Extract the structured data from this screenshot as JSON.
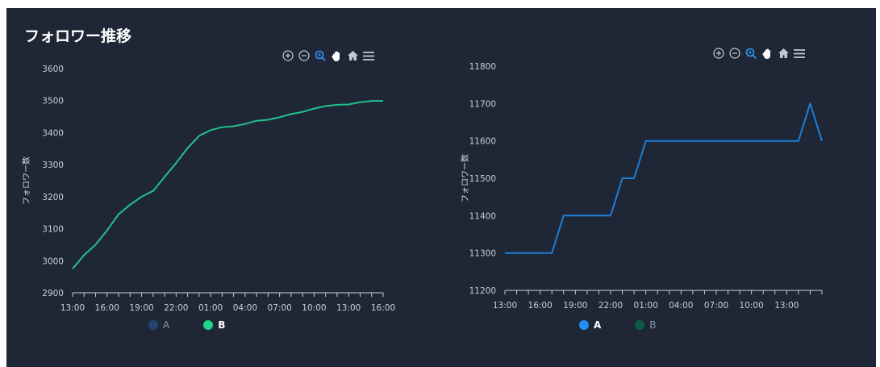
{
  "title": "フォロワー推移",
  "colors": {
    "background": "#1f2736",
    "axis": "#c9ced6",
    "icon": "#c3c9d2",
    "icon_active": "#2f8be6"
  },
  "toolbar": [
    "zoom-in",
    "zoom-out",
    "selection-zoom",
    "pan",
    "reset",
    "menu"
  ],
  "chart_data": [
    {
      "type": "line",
      "ylabel": "フォロワー数",
      "ylim": [
        2900,
        3600
      ],
      "yticks": [
        "2900",
        "3000",
        "3100",
        "3200",
        "3300",
        "3400",
        "3500",
        "3600"
      ],
      "xlim": [
        0,
        27
      ],
      "xticks": [
        {
          "x": 0,
          "label": "13:00"
        },
        {
          "x": 3,
          "label": "16:00"
        },
        {
          "x": 6,
          "label": "19:00"
        },
        {
          "x": 9,
          "label": "22:00"
        },
        {
          "x": 12,
          "label": "01:00"
        },
        {
          "x": 15,
          "label": "04:00"
        },
        {
          "x": 18,
          "label": "07:00"
        },
        {
          "x": 21,
          "label": "10:00"
        },
        {
          "x": 24,
          "label": "13:00"
        },
        {
          "x": 27,
          "label": "16:00"
        }
      ],
      "series": [
        {
          "name": "A",
          "color": "#24446f",
          "visible": false,
          "x": [],
          "values": []
        },
        {
          "name": "B",
          "color": "#22c08a",
          "visible": true,
          "x": [
            0,
            1,
            2,
            3,
            4,
            5,
            6,
            7,
            8,
            9,
            10,
            11,
            12,
            13,
            14,
            15,
            16,
            17,
            18,
            19,
            20,
            21,
            22,
            23,
            24,
            25,
            26,
            27
          ],
          "values": [
            2975,
            3018,
            3050,
            3095,
            3145,
            3175,
            3200,
            3218,
            3262,
            3305,
            3352,
            3390,
            3408,
            3417,
            3420,
            3427,
            3437,
            3440,
            3448,
            3458,
            3465,
            3475,
            3483,
            3487,
            3488,
            3495,
            3499,
            3499
          ]
        }
      ],
      "legend": [
        {
          "name": "A",
          "color": "#24446f",
          "active": false
        },
        {
          "name": "B",
          "color": "#1fd48d",
          "active": true
        }
      ]
    },
    {
      "type": "line",
      "ylabel": "フォロワー数",
      "ylim": [
        11200,
        11800
      ],
      "yticks": [
        "11200",
        "11300",
        "11400",
        "11500",
        "11600",
        "11700",
        "11800"
      ],
      "xlim": [
        0,
        27
      ],
      "xticks": [
        {
          "x": 0,
          "label": "13:00"
        },
        {
          "x": 3,
          "label": "16:00"
        },
        {
          "x": 6,
          "label": "19:00"
        },
        {
          "x": 9,
          "label": "22:00"
        },
        {
          "x": 12,
          "label": "01:00"
        },
        {
          "x": 15,
          "label": "04:00"
        },
        {
          "x": 18,
          "label": "07:00"
        },
        {
          "x": 21,
          "label": "10:00"
        },
        {
          "x": 24,
          "label": "13:00"
        }
      ],
      "series": [
        {
          "name": "A",
          "color": "#1c7fd8",
          "visible": true,
          "x": [
            0,
            1,
            2,
            3,
            4,
            5,
            6,
            7,
            8,
            9,
            10,
            11,
            12,
            13,
            14,
            15,
            16,
            17,
            18,
            19,
            20,
            21,
            22,
            23,
            24,
            25,
            26,
            27
          ],
          "values": [
            11300,
            11300,
            11300,
            11300,
            11300,
            11400,
            11400,
            11400,
            11400,
            11400,
            11500,
            11500,
            11600,
            11600,
            11600,
            11600,
            11600,
            11600,
            11600,
            11600,
            11600,
            11600,
            11600,
            11600,
            11600,
            11600,
            11700,
            11600
          ]
        },
        {
          "name": "B",
          "color": "#0f5a47",
          "visible": false,
          "x": [],
          "values": []
        }
      ],
      "legend": [
        {
          "name": "A",
          "color": "#1f8ef5",
          "active": true
        },
        {
          "name": "B",
          "color": "#0f5a47",
          "active": false
        }
      ]
    }
  ]
}
